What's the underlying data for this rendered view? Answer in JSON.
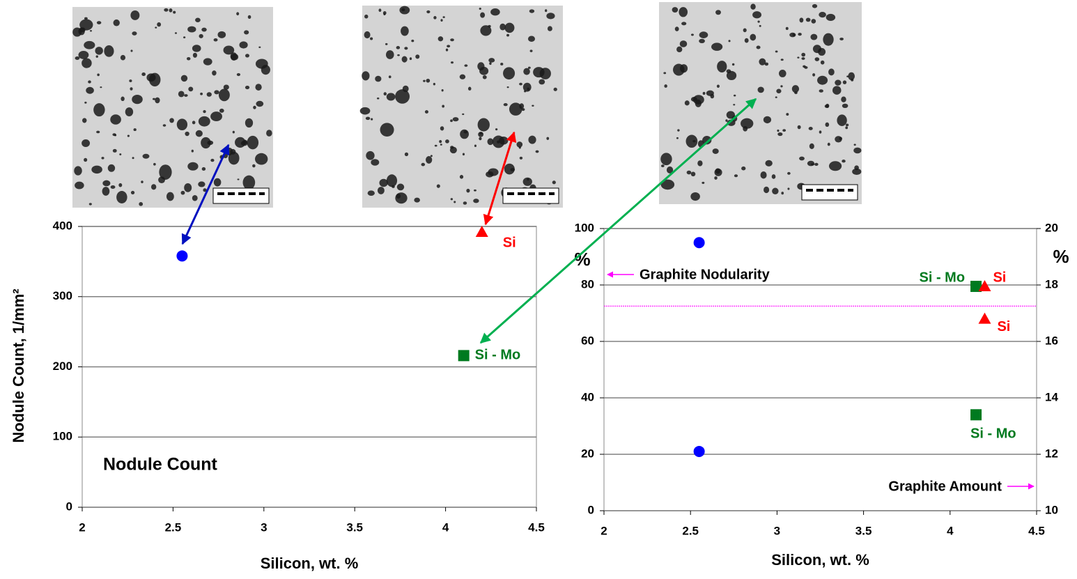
{
  "chart_data": [
    {
      "type": "scatter",
      "x_label": "Silicon, wt. %",
      "y_label": "Nodule Count, 1/mm²",
      "annotation": "Nodule Count",
      "xlim": [
        2,
        4.5
      ],
      "xticks": [
        2,
        2.5,
        3,
        3.5,
        4,
        4.5
      ],
      "ylim": [
        0,
        400
      ],
      "yticks": [
        0,
        100,
        200,
        300,
        400
      ],
      "grid": true,
      "points": [
        {
          "x": 2.55,
          "y": 358,
          "color": "#0000ff",
          "marker": "circle"
        },
        {
          "x": 4.2,
          "y": 392,
          "color": "#ff0000",
          "marker": "triangle",
          "label": "Si"
        },
        {
          "x": 4.1,
          "y": 216,
          "color": "#007a1f",
          "marker": "square",
          "label": "Si - Mo"
        }
      ]
    },
    {
      "type": "scatter",
      "x_label": "Silicon, wt. %",
      "y_label": "%",
      "y2_label": "%",
      "annotations": [
        "Graphite Nodularity",
        "Graphite Amount"
      ],
      "xlim": [
        2,
        4.5
      ],
      "xticks": [
        2,
        2.5,
        3,
        3.5,
        4,
        4.5
      ],
      "ylim": [
        0,
        100
      ],
      "yticks": [
        0,
        20,
        40,
        60,
        80,
        100
      ],
      "y2lim": [
        10,
        20
      ],
      "y2ticks": [
        10,
        12,
        14,
        16,
        18,
        20
      ],
      "grid": true,
      "reference_line": {
        "y": 72.5,
        "color": "#ff40ff"
      },
      "points": [
        {
          "x": 2.55,
          "y": 95,
          "color": "#0000ff",
          "marker": "circle"
        },
        {
          "x": 4.15,
          "y": 79.5,
          "color": "#007a1f",
          "marker": "square",
          "label": "Si - Mo"
        },
        {
          "x": 4.2,
          "y": 79.5,
          "color": "#ff0000",
          "marker": "triangle",
          "label": "Si"
        },
        {
          "x": 2.55,
          "y": 12.1,
          "color": "#0000ff",
          "marker": "circle",
          "axis": "y2"
        },
        {
          "x": 4.15,
          "y": 13.4,
          "color": "#007a1f",
          "marker": "square",
          "axis": "y2",
          "label": "Si - Mo"
        },
        {
          "x": 4.2,
          "y": 16.8,
          "color": "#ff0000",
          "marker": "triangle",
          "axis": "y2",
          "label": "Si"
        }
      ]
    }
  ]
}
